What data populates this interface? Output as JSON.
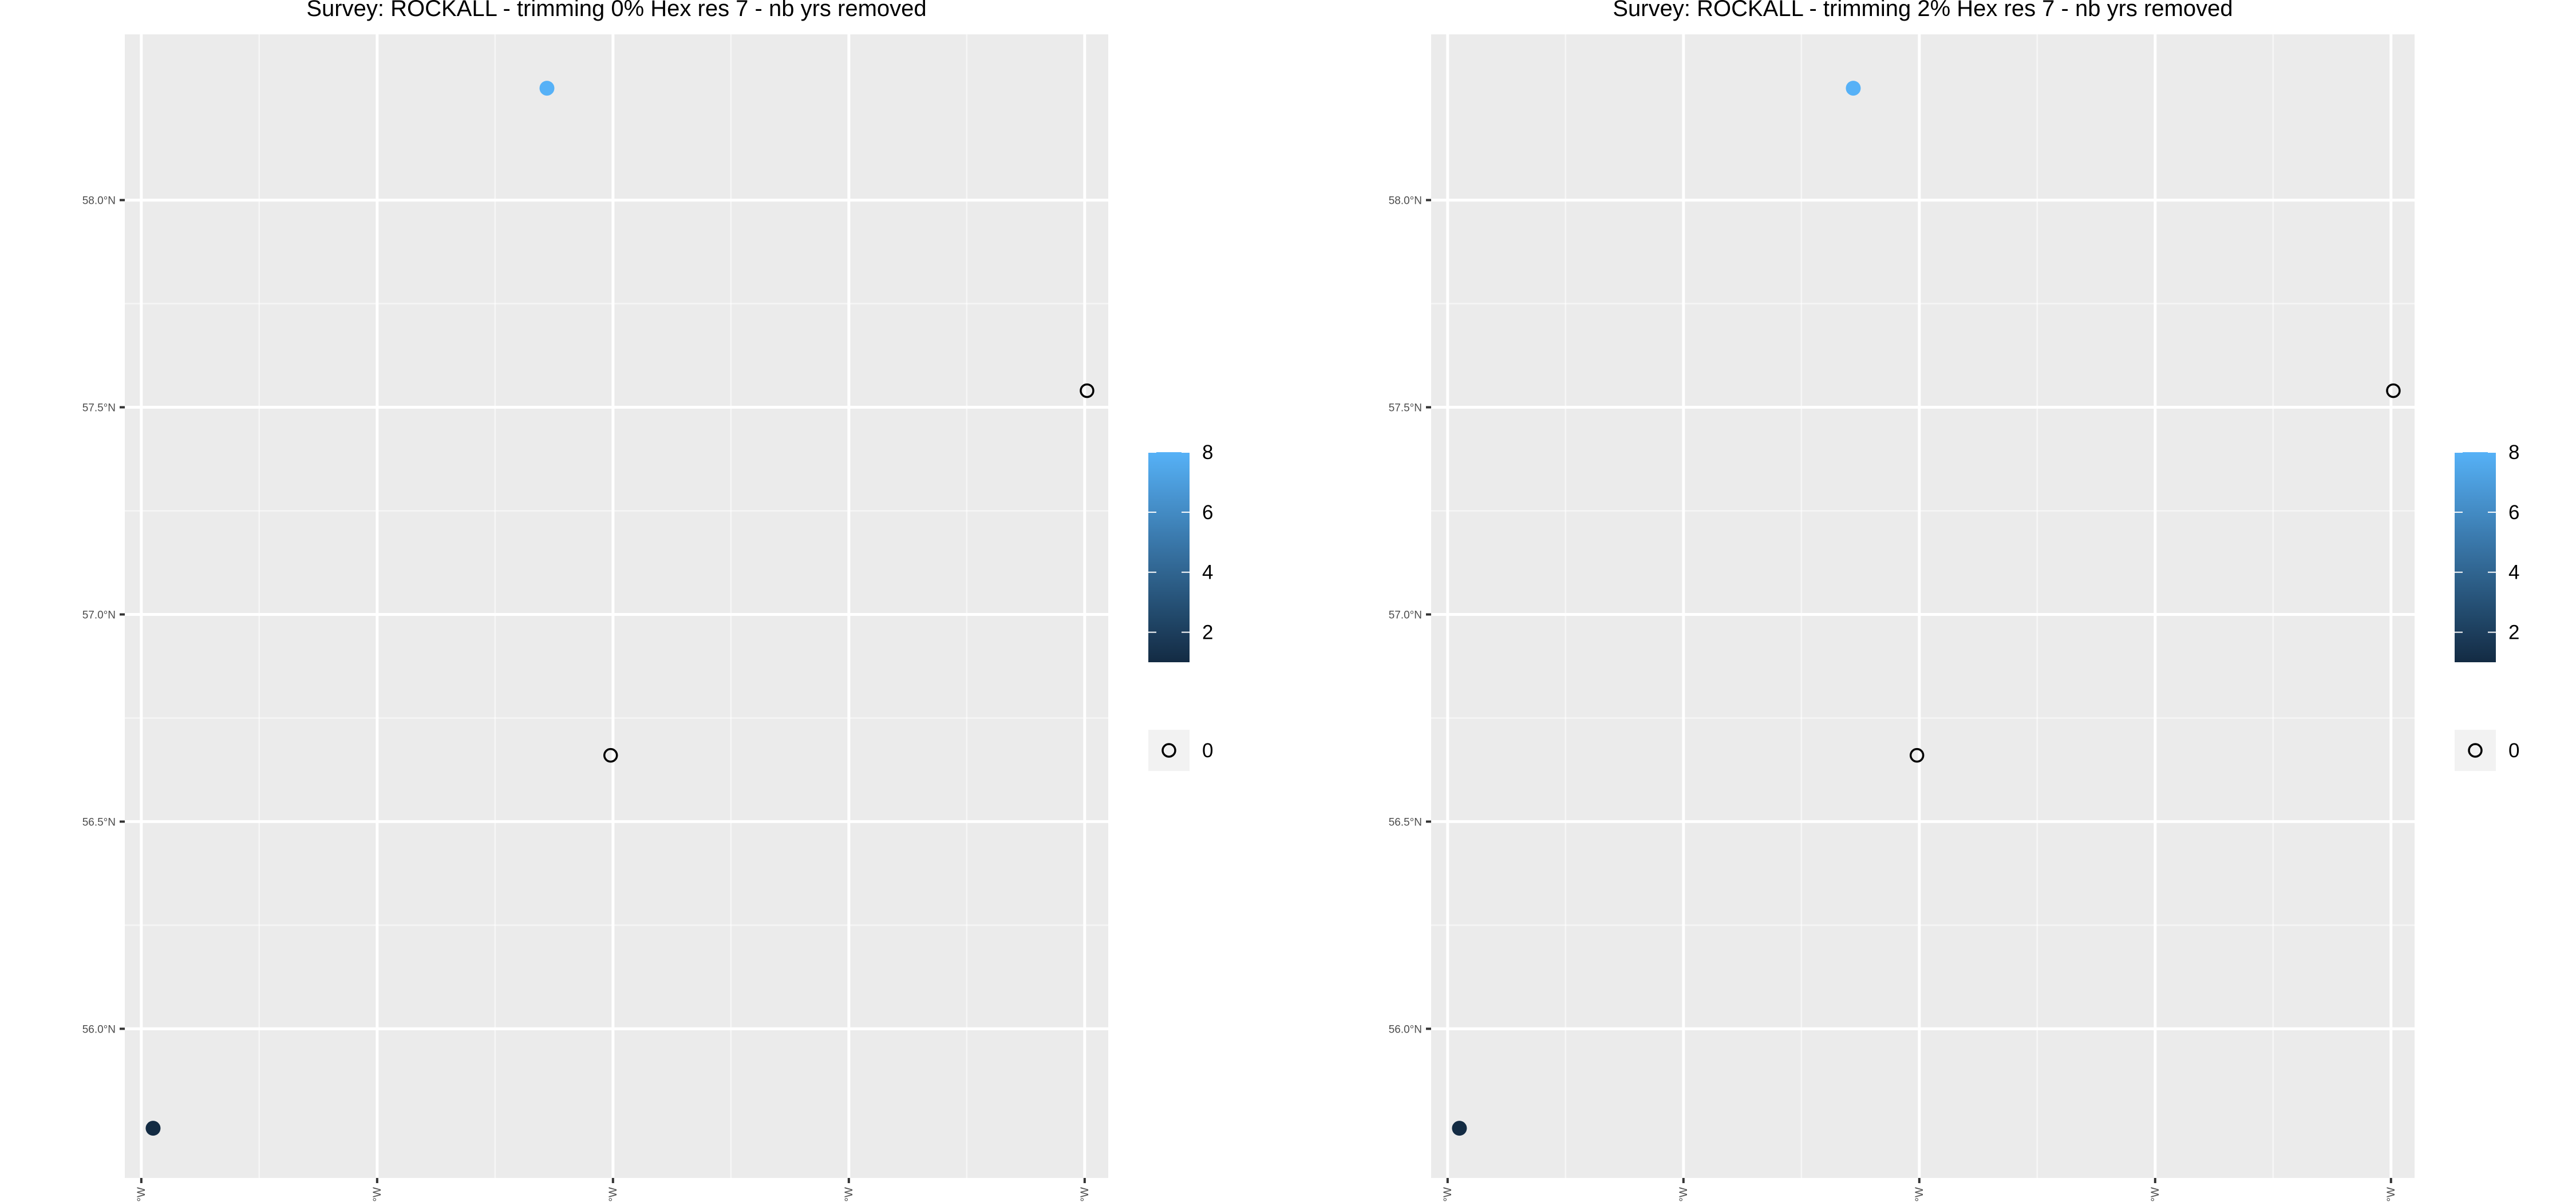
{
  "chart_data": [
    {
      "type": "scatter",
      "title": "Survey: ROCKALL - trimming 0% Hex res 7 - nb yrs removed",
      "xlabel": "",
      "ylabel": "",
      "xlim": [
        -17.07,
        -12.9
      ],
      "ylim": [
        55.64,
        58.4
      ],
      "x_ticks": [
        -17,
        -16,
        -15,
        -14,
        -13
      ],
      "x_tick_labels": [
        "17°W",
        "16°W",
        "15°W",
        "14°W",
        "13°W"
      ],
      "y_ticks": [
        56.0,
        56.5,
        57.0,
        57.5,
        58.0
      ],
      "y_tick_labels": [
        "56.0°N",
        "56.5°N",
        "57.0°N",
        "57.5°N",
        "58.0°N"
      ],
      "grid": true,
      "points": [
        {
          "lon": -15.28,
          "lat": 58.27,
          "value": 8
        },
        {
          "lon": -16.95,
          "lat": 55.76,
          "value": 1
        },
        {
          "lon": -15.01,
          "lat": 56.66,
          "value": 0
        },
        {
          "lon": -12.99,
          "lat": 57.54,
          "value": 0
        }
      ],
      "colorbar": {
        "min": 1,
        "max": 8,
        "ticks": [
          2,
          4,
          6,
          8
        ],
        "color_low": "#132B43",
        "color_high": "#56B1F7"
      },
      "zero_legend_label": "0",
      "zero_marker_color": "#000000"
    },
    {
      "type": "scatter",
      "title": "Survey: ROCKALL - trimming 2% Hex res 7 - nb yrs removed",
      "xlabel": "",
      "ylabel": "",
      "xlim": [
        -17.07,
        -12.9
      ],
      "ylim": [
        55.64,
        58.4
      ],
      "x_ticks": [
        -17,
        -16,
        -15,
        -14,
        -13
      ],
      "x_tick_labels": [
        "17°W",
        "16°W",
        "15°W",
        "14°W",
        "13°W"
      ],
      "y_ticks": [
        56.0,
        56.5,
        57.0,
        57.5,
        58.0
      ],
      "y_tick_labels": [
        "56.0°N",
        "56.5°N",
        "57.0°N",
        "57.5°N",
        "58.0°N"
      ],
      "grid": true,
      "points": [
        {
          "lon": -15.28,
          "lat": 58.27,
          "value": 8
        },
        {
          "lon": -16.95,
          "lat": 55.76,
          "value": 1
        },
        {
          "lon": -15.01,
          "lat": 56.66,
          "value": 0
        },
        {
          "lon": -12.99,
          "lat": 57.54,
          "value": 0
        }
      ],
      "colorbar": {
        "min": 1,
        "max": 8,
        "ticks": [
          2,
          4,
          6,
          8
        ],
        "color_low": "#132B43",
        "color_high": "#56B1F7"
      },
      "zero_legend_label": "0",
      "zero_marker_color": "#000000"
    }
  ],
  "colors": {
    "panel_background": "#EBEBEB",
    "grid": "#FFFFFF",
    "axis_text": "#4D4D4D"
  }
}
